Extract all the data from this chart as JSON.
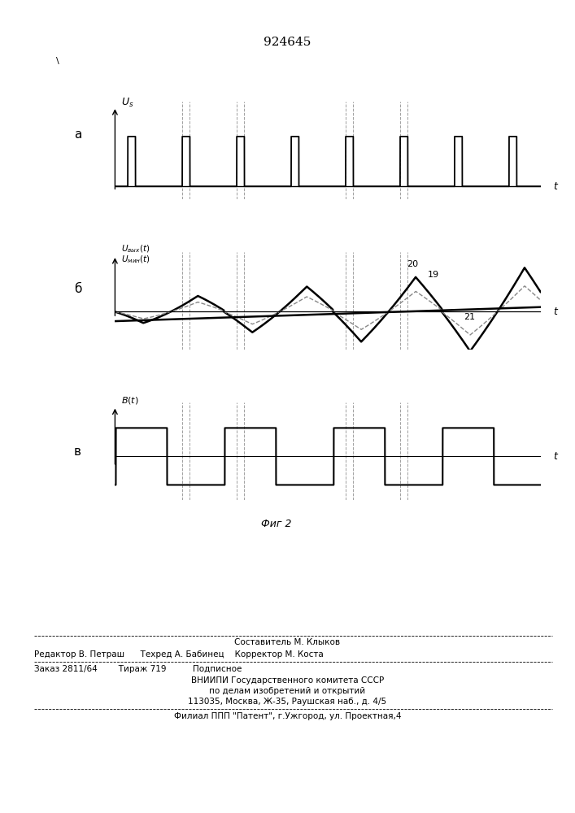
{
  "patent_number": "924645",
  "fig_label": "Фиг 2",
  "bg_color": "#ffffff",
  "line_color": "#000000",
  "dashed_color": "#888888",
  "footer_lines": [
    "Составитель М. Клыков",
    "Редактор В. Петраш      Техред А. Бабинец    Корректор М. Коста",
    "Заказ 2811/64        Тираж 719          Подписное",
    "ВНИИПИ Государственного комитета СССР",
    "по делам изобретений и открытий",
    "113035, Москва, Ж-35, Раушская наб., д. 4/5",
    "Филиал ППП \"Патент\", г.Ужгород, ул. Проектная,4"
  ]
}
